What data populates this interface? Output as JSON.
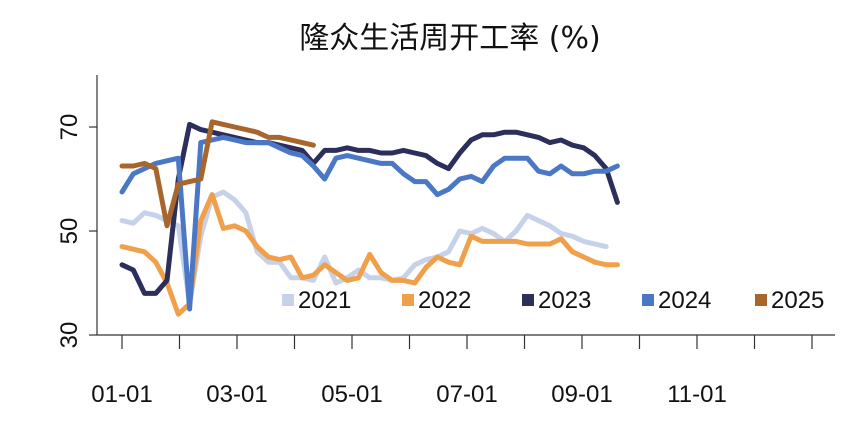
{
  "chart_data": {
    "type": "line",
    "title": "隆众生活周开工率 (%)",
    "xlabel": "",
    "ylabel": "",
    "ylim": [
      30,
      80
    ],
    "yticks": [
      30,
      50,
      70
    ],
    "x_domain": [
      "01-01",
      "12-31"
    ],
    "xtick_labels": [
      "01-01",
      "03-01",
      "05-01",
      "07-01",
      "09-01",
      "11-01"
    ],
    "legend_position": "bottom-center",
    "grid": false,
    "series": [
      {
        "name": "2021",
        "color": "#c6d2ea",
        "points": [
          [
            1,
            52
          ],
          [
            3,
            51.5
          ],
          [
            5,
            53.5
          ],
          [
            7,
            53
          ],
          [
            9,
            52
          ],
          [
            11,
            51
          ],
          [
            13,
            36
          ],
          [
            15,
            49
          ],
          [
            17,
            56.5
          ],
          [
            19,
            57.5
          ],
          [
            21,
            56
          ],
          [
            23,
            53.5
          ],
          [
            25,
            46
          ],
          [
            27,
            44
          ],
          [
            29,
            44
          ],
          [
            31,
            41
          ],
          [
            33,
            41
          ],
          [
            35,
            40.5
          ],
          [
            37,
            45
          ],
          [
            39,
            40
          ],
          [
            41,
            41
          ],
          [
            43,
            42.5
          ],
          [
            45,
            41
          ],
          [
            47,
            41
          ],
          [
            49,
            40.5
          ],
          [
            51,
            41
          ],
          [
            53,
            43.5
          ],
          [
            55,
            44.5
          ],
          [
            57,
            45
          ],
          [
            59,
            46
          ],
          [
            61,
            50
          ],
          [
            63,
            49.5
          ],
          [
            65,
            50.5
          ],
          [
            67,
            49.5
          ],
          [
            69,
            48
          ],
          [
            71,
            50
          ],
          [
            73,
            53
          ],
          [
            75,
            52
          ],
          [
            77,
            51
          ],
          [
            79,
            49.5
          ],
          [
            81,
            49
          ],
          [
            83,
            48
          ],
          [
            85,
            47.5
          ],
          [
            87,
            47
          ]
        ]
      },
      {
        "name": "2022",
        "color": "#f0a04b",
        "points": [
          [
            1,
            47
          ],
          [
            3,
            46.5
          ],
          [
            5,
            46
          ],
          [
            7,
            44
          ],
          [
            9,
            40
          ],
          [
            11,
            34
          ],
          [
            13,
            36
          ],
          [
            15,
            52
          ],
          [
            17,
            57
          ],
          [
            19,
            50.5
          ],
          [
            21,
            51
          ],
          [
            23,
            50
          ],
          [
            25,
            47
          ],
          [
            27,
            45
          ],
          [
            29,
            44.5
          ],
          [
            31,
            45
          ],
          [
            33,
            41
          ],
          [
            35,
            41.5
          ],
          [
            37,
            43.5
          ],
          [
            39,
            42
          ],
          [
            41,
            40.5
          ],
          [
            43,
            41
          ],
          [
            45,
            45.5
          ],
          [
            47,
            42
          ],
          [
            49,
            40.5
          ],
          [
            51,
            40.5
          ],
          [
            53,
            40
          ],
          [
            55,
            43
          ],
          [
            57,
            45
          ],
          [
            59,
            44
          ],
          [
            61,
            43.5
          ],
          [
            63,
            49
          ],
          [
            65,
            48
          ],
          [
            67,
            48
          ],
          [
            69,
            48
          ],
          [
            71,
            48
          ],
          [
            73,
            47.5
          ],
          [
            75,
            47.5
          ],
          [
            77,
            47.5
          ],
          [
            79,
            48.5
          ],
          [
            81,
            46
          ],
          [
            83,
            45
          ],
          [
            85,
            44
          ],
          [
            87,
            43.5
          ],
          [
            89,
            43.5
          ]
        ]
      },
      {
        "name": "2023",
        "color": "#2c2f5b",
        "points": [
          [
            1,
            43.5
          ],
          [
            3,
            42.5
          ],
          [
            5,
            38
          ],
          [
            7,
            38
          ],
          [
            9,
            40.5
          ],
          [
            11,
            60
          ],
          [
            13,
            70.5
          ],
          [
            15,
            69.5
          ],
          [
            17,
            69
          ],
          [
            19,
            68.5
          ],
          [
            21,
            68
          ],
          [
            23,
            67.5
          ],
          [
            25,
            67
          ],
          [
            27,
            67
          ],
          [
            29,
            66.5
          ],
          [
            31,
            66
          ],
          [
            33,
            65.5
          ],
          [
            35,
            63
          ],
          [
            37,
            65.5
          ],
          [
            39,
            65.5
          ],
          [
            41,
            66
          ],
          [
            43,
            65.5
          ],
          [
            45,
            65.5
          ],
          [
            47,
            65
          ],
          [
            49,
            65
          ],
          [
            51,
            65.5
          ],
          [
            53,
            65
          ],
          [
            55,
            64.5
          ],
          [
            57,
            63
          ],
          [
            59,
            62
          ],
          [
            61,
            65
          ],
          [
            63,
            67.5
          ],
          [
            65,
            68.5
          ],
          [
            67,
            68.5
          ],
          [
            69,
            69
          ],
          [
            71,
            69
          ],
          [
            73,
            68.5
          ],
          [
            75,
            68
          ],
          [
            77,
            67
          ],
          [
            79,
            67.5
          ],
          [
            81,
            66.5
          ],
          [
            83,
            66
          ],
          [
            85,
            64.5
          ],
          [
            87,
            62
          ],
          [
            89,
            55.5
          ]
        ]
      },
      {
        "name": "2024",
        "color": "#4a78c6",
        "points": [
          [
            1,
            57.5
          ],
          [
            3,
            61
          ],
          [
            5,
            62
          ],
          [
            7,
            63
          ],
          [
            9,
            63.5
          ],
          [
            11,
            64
          ],
          [
            13,
            35
          ],
          [
            15,
            67
          ],
          [
            17,
            67.5
          ],
          [
            19,
            68
          ],
          [
            21,
            67.5
          ],
          [
            23,
            67
          ],
          [
            25,
            67
          ],
          [
            27,
            67
          ],
          [
            29,
            66
          ],
          [
            31,
            65
          ],
          [
            33,
            64.5
          ],
          [
            35,
            62.5
          ],
          [
            37,
            60
          ],
          [
            39,
            64
          ],
          [
            41,
            64.5
          ],
          [
            43,
            64
          ],
          [
            45,
            63.5
          ],
          [
            47,
            63
          ],
          [
            49,
            63
          ],
          [
            51,
            61
          ],
          [
            53,
            59.5
          ],
          [
            55,
            59.5
          ],
          [
            57,
            57
          ],
          [
            59,
            58
          ],
          [
            61,
            60
          ],
          [
            63,
            60.5
          ],
          [
            65,
            59.5
          ],
          [
            67,
            62.5
          ],
          [
            69,
            64
          ],
          [
            71,
            64
          ],
          [
            73,
            64
          ],
          [
            75,
            61.5
          ],
          [
            77,
            61
          ],
          [
            79,
            62.5
          ],
          [
            81,
            61
          ],
          [
            83,
            61
          ],
          [
            85,
            61.5
          ],
          [
            87,
            61.5
          ],
          [
            89,
            62.5
          ]
        ]
      },
      {
        "name": "2025",
        "color": "#a8662c",
        "points": [
          [
            1,
            62.5
          ],
          [
            3,
            62.5
          ],
          [
            5,
            63
          ],
          [
            7,
            62
          ],
          [
            9,
            51
          ],
          [
            11,
            59
          ],
          [
            13,
            59.5
          ],
          [
            15,
            60
          ],
          [
            17,
            71
          ],
          [
            19,
            70.5
          ],
          [
            21,
            70
          ],
          [
            23,
            69.5
          ],
          [
            25,
            69
          ],
          [
            27,
            68
          ],
          [
            29,
            68
          ],
          [
            31,
            67.5
          ],
          [
            33,
            67
          ],
          [
            35,
            66.5
          ]
        ]
      }
    ]
  }
}
